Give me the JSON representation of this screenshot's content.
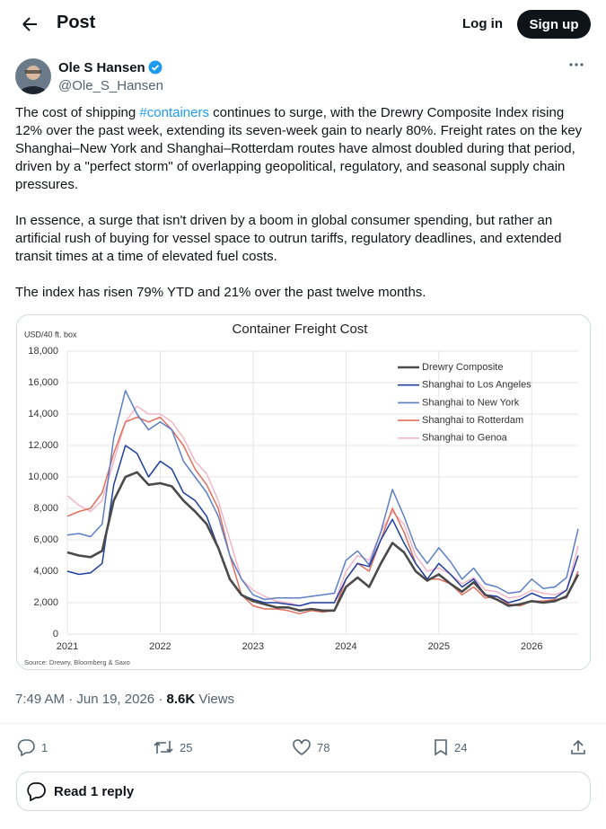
{
  "header": {
    "title": "Post",
    "login": "Log in",
    "signup": "Sign up"
  },
  "author": {
    "name": "Ole S Hansen",
    "handle": "@Ole_S_Hansen"
  },
  "post": {
    "p1_start": "The cost of shipping ",
    "hashtag": "#containers",
    "p1_end": " continues to surge, with the Drewry Composite Index rising 12% over the past week, extending its seven-week gain to nearly 80%. Freight rates on the key Shanghai–New York and Shanghai–Rotterdam routes have almost doubled during that period, driven by a \"perfect storm\" of overlapping geopolitical, regulatory, and seasonal supply chain pressures.",
    "p2": "In essence, a surge that isn't driven by a boom in global consumer spending, but rather an artificial rush of buying for vessel space to outrun tariffs, regulatory deadlines, and extended transit times at a time of elevated fuel costs.",
    "p3": "The index has risen 79% YTD and 21% over the past twelve months."
  },
  "chart_data": {
    "type": "line",
    "title": "Container Freight Cost",
    "y_label": "USD/40 ft. box",
    "source": "Source: Drewry, Bloomberg & Saxo",
    "x": [
      2021,
      2021.125,
      2021.25,
      2021.375,
      2021.5,
      2021.625,
      2021.75,
      2021.875,
      2022,
      2022.125,
      2022.25,
      2022.375,
      2022.5,
      2022.625,
      2022.75,
      2022.875,
      2023,
      2023.125,
      2023.25,
      2023.375,
      2023.5,
      2023.625,
      2023.75,
      2023.875,
      2024,
      2024.125,
      2024.25,
      2024.375,
      2024.5,
      2024.625,
      2024.75,
      2024.875,
      2025,
      2025.125,
      2025.25,
      2025.375,
      2025.5,
      2025.625,
      2025.75,
      2025.875,
      2026,
      2026.125,
      2026.25,
      2026.375,
      2026.5
    ],
    "xlim": [
      2021,
      2026.5
    ],
    "xticks": [
      2021,
      2022,
      2023,
      2024,
      2025,
      2026
    ],
    "ylim": [
      0,
      18000
    ],
    "yticks": [
      0,
      {
        "value": 2000,
        "label": "2,000"
      },
      {
        "value": 4000,
        "label": "4,000"
      },
      {
        "value": 6000,
        "label": "6,000"
      },
      {
        "value": 8000,
        "label": "8,000"
      },
      {
        "value": 10000,
        "label": "10,000"
      },
      {
        "value": 12000,
        "label": "12,000"
      },
      {
        "value": 14000,
        "label": "14,000"
      },
      {
        "value": 16000,
        "label": "16,000"
      },
      {
        "value": 18000,
        "label": "18,000"
      }
    ],
    "grid": true,
    "legend": "upper right",
    "series": [
      {
        "name": "Drewry Composite",
        "color": "#4a4a4a",
        "values": [
          5200,
          5000,
          4900,
          5300,
          8500,
          10000,
          10300,
          9500,
          9600,
          9400,
          8500,
          7800,
          7000,
          5500,
          3500,
          2500,
          2100,
          1900,
          1700,
          1700,
          1500,
          1600,
          1500,
          1500,
          3000,
          3600,
          3000,
          4500,
          5800,
          5200,
          4000,
          3400,
          3800,
          3200,
          2700,
          3300,
          2500,
          2200,
          1800,
          1900,
          2100,
          2000,
          2100,
          2400,
          3800
        ]
      },
      {
        "name": "Shanghai to Los Angeles",
        "color": "#1f3f9f",
        "values": [
          4000,
          3800,
          3900,
          4500,
          9500,
          12000,
          11500,
          10000,
          11000,
          10500,
          9000,
          8500,
          7500,
          5500,
          3500,
          2500,
          2200,
          2000,
          2000,
          1900,
          1800,
          2000,
          2000,
          2000,
          3500,
          4500,
          4300,
          6000,
          7300,
          5800,
          4500,
          3500,
          4500,
          3800,
          3000,
          3500,
          2500,
          2400,
          2000,
          2200,
          2600,
          2300,
          2300,
          2800,
          5000
        ]
      },
      {
        "name": "Shanghai to New York",
        "color": "#5d7fc6",
        "values": [
          6300,
          6400,
          6200,
          7000,
          12500,
          15500,
          14000,
          13000,
          13500,
          13000,
          11000,
          10000,
          9000,
          7500,
          5000,
          3500,
          2500,
          2200,
          2300,
          2300,
          2300,
          2400,
          2500,
          2600,
          4700,
          5300,
          4400,
          6500,
          9200,
          7500,
          5500,
          4500,
          5500,
          4600,
          3500,
          4200,
          3200,
          3000,
          2600,
          2700,
          3500,
          2900,
          3000,
          3600,
          6700
        ]
      },
      {
        "name": "Shanghai to Rotterdam",
        "color": "#e0705f",
        "values": [
          7500,
          7800,
          8000,
          9000,
          11500,
          13500,
          13800,
          13500,
          13800,
          13000,
          12000,
          10500,
          9500,
          8000,
          5000,
          2500,
          1800,
          1600,
          1600,
          1500,
          1300,
          1500,
          1400,
          1500,
          3500,
          4500,
          4000,
          6000,
          8000,
          6500,
          4500,
          3500,
          3500,
          3200,
          2500,
          3000,
          2300,
          2400,
          1900,
          1800,
          2100,
          2100,
          2200,
          2300,
          4000
        ]
      },
      {
        "name": "Shanghai to Genoa",
        "color": "#f2b6c6",
        "values": [
          8800,
          8200,
          7800,
          8500,
          11000,
          13500,
          14500,
          14000,
          14000,
          13500,
          12500,
          11000,
          10200,
          8500,
          6000,
          3500,
          2800,
          2400,
          2100,
          2000,
          1800,
          2000,
          2000,
          2000,
          4000,
          5000,
          4700,
          6500,
          7800,
          7000,
          5000,
          4000,
          4200,
          3800,
          3200,
          3600,
          2800,
          2700,
          2300,
          2400,
          2800,
          2600,
          2500,
          2800,
          5600
        ]
      }
    ]
  },
  "meta": {
    "time": "7:49 AM",
    "separator": "·",
    "date": "Jun 19, 2026",
    "views": "8.6K",
    "views_label": "Views"
  },
  "actions": {
    "replies": 1,
    "reposts": 25,
    "likes": 78,
    "bookmarks": 24
  },
  "reply_button": "Read 1 reply"
}
